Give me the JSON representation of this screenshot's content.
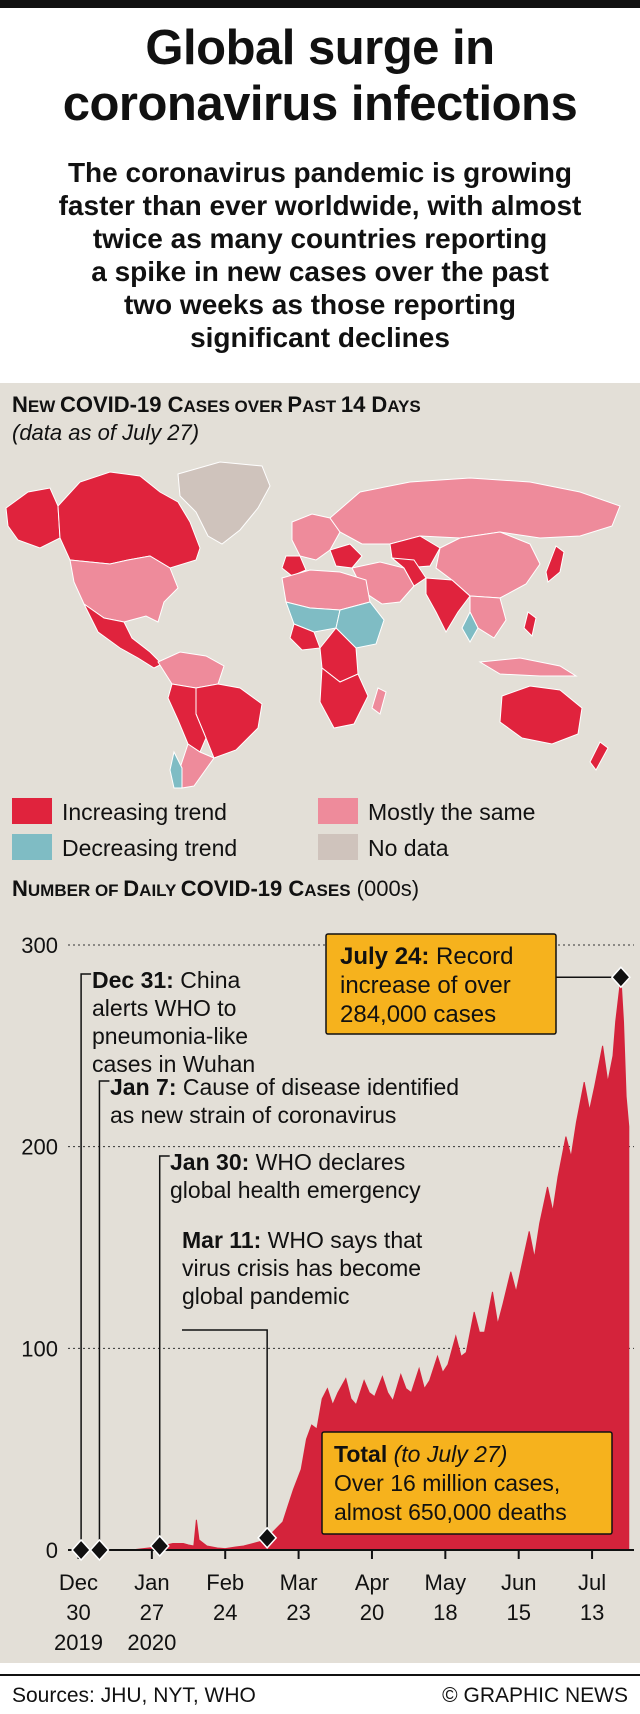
{
  "title": "Global surge in\ncoronavirus infections",
  "subtitle": "The coronavirus pandemic is growing\nfaster than ever worldwide, with almost\ntwice as many countries reporting\na spike in new cases over the past\ntwo weeks as those reporting\nsignificant declines",
  "map": {
    "title_parts": [
      "N",
      "EW ",
      "COVID-19 C",
      "ASES OVER ",
      "P",
      "AST ",
      "14 D",
      "AYS"
    ],
    "note": "(data as of July 27)",
    "legend": [
      {
        "label": "Increasing trend",
        "color": "#e0233d"
      },
      {
        "label": "Mostly the same",
        "color": "#ee8b9b"
      },
      {
        "label": "Decreasing trend",
        "color": "#7fbcc4"
      },
      {
        "label": "No data",
        "color": "#cfc3bc"
      }
    ]
  },
  "chart_data": {
    "type": "area",
    "title_parts": [
      "N",
      "UMBER OF ",
      "D",
      "AILY ",
      "COVID-19 C",
      "ASES"
    ],
    "unit": "(000s)",
    "ylim": [
      0,
      300
    ],
    "yticks": [
      0,
      100,
      200,
      300
    ],
    "x_ticks": [
      {
        "date": "2019-12-30",
        "lines": [
          "Dec",
          "30",
          "2019"
        ]
      },
      {
        "date": "2020-01-27",
        "lines": [
          "Jan",
          "27",
          "2020"
        ]
      },
      {
        "date": "2020-02-24",
        "lines": [
          "Feb",
          "24"
        ]
      },
      {
        "date": "2020-03-23",
        "lines": [
          "Mar",
          "23"
        ]
      },
      {
        "date": "2020-04-20",
        "lines": [
          "Apr",
          "20"
        ]
      },
      {
        "date": "2020-05-18",
        "lines": [
          "May",
          "18"
        ]
      },
      {
        "date": "2020-06-15",
        "lines": [
          "Jun",
          "15"
        ]
      },
      {
        "date": "2020-07-13",
        "lines": [
          "Jul",
          "13"
        ]
      }
    ],
    "series": [
      {
        "color": "#d4233b",
        "points": [
          [
            "2020-01-15",
            0
          ],
          [
            "2020-01-20",
            0.1
          ],
          [
            "2020-01-27",
            1.2
          ],
          [
            "2020-01-31",
            2.0
          ],
          [
            "2020-02-04",
            3.2
          ],
          [
            "2020-02-08",
            3.2
          ],
          [
            "2020-02-10",
            2.5
          ],
          [
            "2020-02-12",
            2.0
          ],
          [
            "2020-02-13",
            15.0
          ],
          [
            "2020-02-14",
            5.0
          ],
          [
            "2020-02-17",
            2.0
          ],
          [
            "2020-02-21",
            1.0
          ],
          [
            "2020-02-24",
            0.7
          ],
          [
            "2020-02-28",
            1.5
          ],
          [
            "2020-03-02",
            2.0
          ],
          [
            "2020-03-05",
            3.0
          ],
          [
            "2020-03-08",
            4.0
          ],
          [
            "2020-03-11",
            6.0
          ],
          [
            "2020-03-14",
            10.0
          ],
          [
            "2020-03-17",
            14.0
          ],
          [
            "2020-03-19",
            22.0
          ],
          [
            "2020-03-21",
            30.0
          ],
          [
            "2020-03-24",
            40.0
          ],
          [
            "2020-03-26",
            55.0
          ],
          [
            "2020-03-28",
            62.0
          ],
          [
            "2020-03-30",
            60.0
          ],
          [
            "2020-04-01",
            75.0
          ],
          [
            "2020-04-03",
            80.0
          ],
          [
            "2020-04-05",
            72.0
          ],
          [
            "2020-04-07",
            78.0
          ],
          [
            "2020-04-10",
            85.0
          ],
          [
            "2020-04-12",
            75.0
          ],
          [
            "2020-04-14",
            72.0
          ],
          [
            "2020-04-17",
            84.0
          ],
          [
            "2020-04-19",
            78.0
          ],
          [
            "2020-04-21",
            76.0
          ],
          [
            "2020-04-24",
            86.0
          ],
          [
            "2020-04-26",
            78.0
          ],
          [
            "2020-04-28",
            74.0
          ],
          [
            "2020-05-01",
            87.0
          ],
          [
            "2020-05-03",
            80.0
          ],
          [
            "2020-05-05",
            78.0
          ],
          [
            "2020-05-08",
            90.0
          ],
          [
            "2020-05-10",
            80.0
          ],
          [
            "2020-05-12",
            84.0
          ],
          [
            "2020-05-15",
            96.0
          ],
          [
            "2020-05-17",
            88.0
          ],
          [
            "2020-05-19",
            92.0
          ],
          [
            "2020-05-22",
            106.0
          ],
          [
            "2020-05-24",
            96.0
          ],
          [
            "2020-05-26",
            98.0
          ],
          [
            "2020-05-29",
            118.0
          ],
          [
            "2020-05-31",
            108.0
          ],
          [
            "2020-06-02",
            108.0
          ],
          [
            "2020-06-05",
            128.0
          ],
          [
            "2020-06-07",
            112.0
          ],
          [
            "2020-06-09",
            122.0
          ],
          [
            "2020-06-12",
            138.0
          ],
          [
            "2020-06-14",
            128.0
          ],
          [
            "2020-06-16",
            140.0
          ],
          [
            "2020-06-19",
            158.0
          ],
          [
            "2020-06-21",
            145.0
          ],
          [
            "2020-06-23",
            162.0
          ],
          [
            "2020-06-26",
            180.0
          ],
          [
            "2020-06-28",
            168.0
          ],
          [
            "2020-06-30",
            185.0
          ],
          [
            "2020-07-03",
            205.0
          ],
          [
            "2020-07-05",
            195.0
          ],
          [
            "2020-07-07",
            212.0
          ],
          [
            "2020-07-10",
            232.0
          ],
          [
            "2020-07-12",
            218.0
          ],
          [
            "2020-07-14",
            230.0
          ],
          [
            "2020-07-17",
            250.0
          ],
          [
            "2020-07-19",
            232.0
          ],
          [
            "2020-07-21",
            245.0
          ],
          [
            "2020-07-22",
            262.0
          ],
          [
            "2020-07-24",
            284.0
          ],
          [
            "2020-07-25",
            262.0
          ],
          [
            "2020-07-26",
            225.0
          ],
          [
            "2020-07-27",
            210.0
          ]
        ]
      }
    ],
    "annotations": [
      {
        "label": "Dec 31:",
        "text": " China\nalerts WHO to\npneumonia-like\ncases in Wuhan",
        "date": "2019-12-31",
        "value": 0
      },
      {
        "label": "Jan 7:",
        "text": " Cause of disease identified\nas new strain of coronavirus",
        "date": "2020-01-07",
        "value": 0
      },
      {
        "label": "Jan 30:",
        "text": " WHO declares\nglobal health emergency",
        "date": "2020-01-30",
        "value": 2
      },
      {
        "label": "Mar 11:",
        "text": " WHO says that\nvirus crisis has become\nglobal pandemic",
        "date": "2020-03-11",
        "value": 6
      }
    ],
    "callouts": [
      {
        "label": "July 24:",
        "text": " Record\nincrease of over\n284,000 cases",
        "date": "2020-07-24",
        "value": 284
      },
      {
        "label": "Total",
        "italic": " (to July 27)",
        "text": "\nOver 16 million cases,\nalmost 650,000 deaths"
      }
    ]
  },
  "footer": {
    "sources": "Sources: JHU, NYT, WHO",
    "credit": "© GRAPHIC NEWS"
  }
}
